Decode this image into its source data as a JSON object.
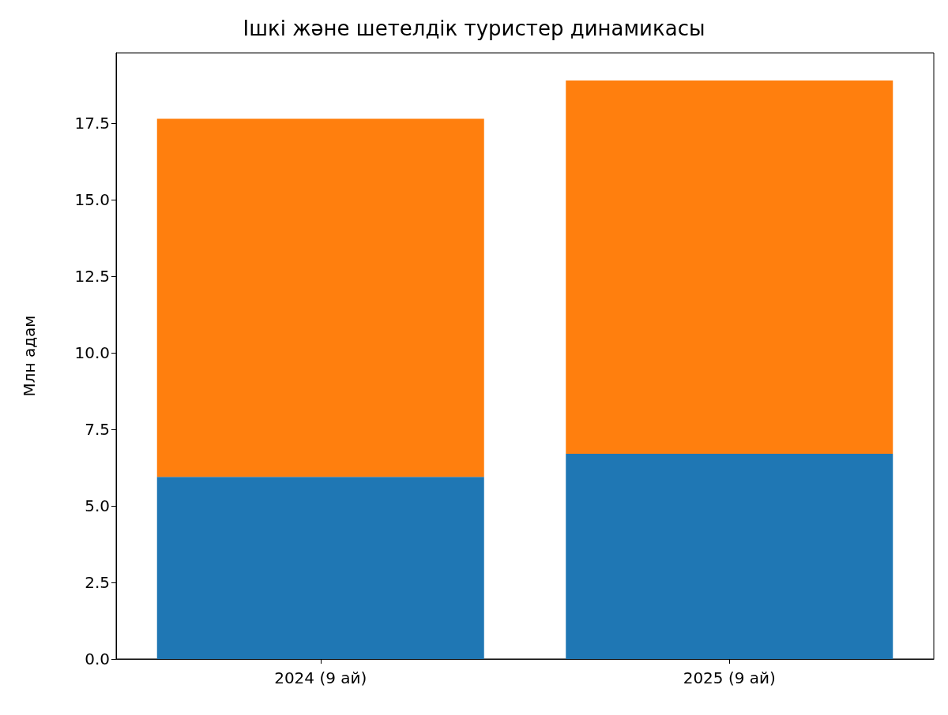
{
  "chart_data": {
    "type": "bar",
    "title": "Ішкі және шетелдік туристер динамикасы",
    "ylabel": "Млн адам",
    "categories": [
      "2024 (9 ай)",
      "2025 (9 ай)"
    ],
    "stacked": true,
    "series": [
      {
        "color": "#1f77b4",
        "values": [
          5.95,
          6.7
        ]
      },
      {
        "color": "#ff7f0e",
        "values": [
          11.7,
          12.2
        ]
      }
    ],
    "ylim": [
      0,
      19.8
    ],
    "yticks": [
      {
        "value": 0,
        "label": "0.0"
      },
      {
        "value": 2.5,
        "label": "2.5"
      },
      {
        "value": 5,
        "label": "5.0"
      },
      {
        "value": 7.5,
        "label": "7.5"
      },
      {
        "value": 10,
        "label": "10.0"
      },
      {
        "value": 12.5,
        "label": "12.5"
      },
      {
        "value": 15,
        "label": "15.0"
      },
      {
        "value": 17.5,
        "label": "17.5"
      }
    ],
    "grid": false
  }
}
